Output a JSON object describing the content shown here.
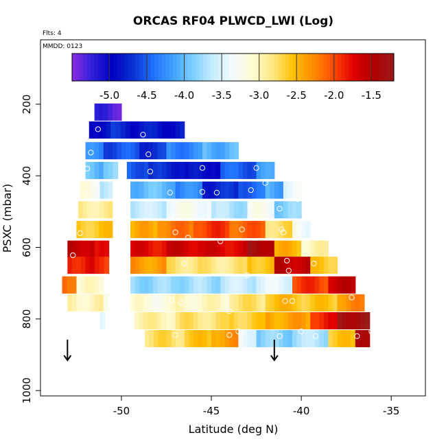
{
  "chart_data": {
    "type": "heatmap",
    "title": "ORCAS RF04 PLWCD_LWI (Log)",
    "note_flts": "Flts: 4",
    "note_mmdd": "MMDD: 0123",
    "xlabel": "Latitude (deg N)",
    "ylabel": "PSXC (mbar)",
    "xlim": [
      -54.5,
      -33.1
    ],
    "ylim": [
      1015,
      20
    ],
    "x_ticks": [
      -50,
      -45,
      -40,
      -35
    ],
    "x_tick_labels": [
      "-50",
      "-45",
      "-40",
      "-35"
    ],
    "y_ticks": [
      200,
      400,
      600,
      800,
      1000
    ],
    "y_tick_labels": [
      "200",
      "400",
      "600",
      "800",
      "1000"
    ],
    "colorbar": {
      "vmin": -5.5,
      "vmax": -1.2,
      "ticks": [
        -5.0,
        -4.5,
        -4.0,
        -3.5,
        -3.0,
        -2.5,
        -2.0,
        -1.5
      ],
      "tick_labels": [
        "-5.0",
        "-4.5",
        "-4.0",
        "-3.5",
        "-3.0",
        "-2.5",
        "-2.0",
        "-1.5"
      ],
      "colors": [
        "#8a2be2",
        "#2f1fd8",
        "#0000c0",
        "#0a2fd0",
        "#1f6fff",
        "#3fa0ff",
        "#7ccfff",
        "#c7ecff",
        "#f4fbff",
        "#fffbd0",
        "#ffe680",
        "#ffc000",
        "#ff8c00",
        "#ff4a00",
        "#e00000",
        "#b00000",
        "#9a1a1a"
      ]
    },
    "rows": [
      {
        "p": 222,
        "segments": [
          [
            -51.5,
            -50.0,
            -5.3
          ]
        ]
      },
      {
        "p": 272,
        "segments": [
          [
            -51.8,
            -50.6,
            -4.9
          ],
          [
            -50.6,
            -49.5,
            -4.75
          ],
          [
            -49.5,
            -46.5,
            -4.85
          ]
        ]
      },
      {
        "p": 330,
        "segments": [
          [
            -52.0,
            -51.0,
            -4.3
          ],
          [
            -51.0,
            -49.0,
            -4.55
          ],
          [
            -49.0,
            -47.5,
            -4.7
          ],
          [
            -47.5,
            -45.5,
            -4.3
          ],
          [
            -45.5,
            -43.5,
            -4.05
          ]
        ]
      },
      {
        "p": 385,
        "segments": [
          [
            -52.0,
            -51.0,
            -4.0
          ],
          [
            -51.0,
            -50.2,
            -3.8
          ],
          [
            -49.7,
            -48.5,
            -4.5
          ],
          [
            -48.5,
            -46.5,
            -4.75
          ],
          [
            -46.5,
            -44.5,
            -4.9
          ],
          [
            -44.5,
            -42.5,
            -4.5
          ],
          [
            -42.5,
            -41.5,
            -4.2
          ]
        ]
      },
      {
        "p": 440,
        "segments": [
          [
            -52.3,
            -51.2,
            -3.2
          ],
          [
            -51.2,
            -50.5,
            -3.6
          ],
          [
            -49.5,
            -47.0,
            -4.0
          ],
          [
            -47.0,
            -45.5,
            -4.3
          ],
          [
            -45.5,
            -43.5,
            -4.75
          ],
          [
            -43.5,
            -42.0,
            -4.45
          ],
          [
            -42.0,
            -41.0,
            -4.1
          ],
          [
            -41.0,
            -40.0,
            -3.4
          ]
        ]
      },
      {
        "p": 495,
        "segments": [
          [
            -52.4,
            -50.5,
            -2.9
          ],
          [
            -49.5,
            -47.5,
            -3.6
          ],
          [
            -47.5,
            -45.0,
            -3.3
          ],
          [
            -45.0,
            -43.0,
            -3.7
          ],
          [
            -43.0,
            -41.5,
            -3.3
          ],
          [
            -41.5,
            -40.0,
            -3.85
          ]
        ]
      },
      {
        "p": 550,
        "segments": [
          [
            -52.5,
            -50.5,
            -2.6
          ],
          [
            -49.5,
            -48.0,
            -2.45
          ],
          [
            -48.0,
            -46.0,
            -2.2
          ],
          [
            -46.0,
            -44.0,
            -1.95
          ],
          [
            -44.0,
            -42.0,
            -2.1
          ],
          [
            -42.0,
            -40.5,
            -2.75
          ],
          [
            -40.5,
            -39.5,
            -3.3
          ]
        ]
      },
      {
        "p": 605,
        "segments": [
          [
            -53.0,
            -51.5,
            -1.55
          ],
          [
            -51.5,
            -50.7,
            -1.85
          ],
          [
            -49.5,
            -47.5,
            -1.75
          ],
          [
            -47.5,
            -45.5,
            -1.65
          ],
          [
            -45.5,
            -43.0,
            -1.7
          ],
          [
            -43.0,
            -41.5,
            -1.4
          ],
          [
            -41.5,
            -40.0,
            -2.5
          ],
          [
            -40.0,
            -38.5,
            -3.0
          ]
        ]
      },
      {
        "p": 650,
        "segments": [
          [
            -53.0,
            -51.5,
            -1.8
          ],
          [
            -51.5,
            -50.7,
            -1.95
          ],
          [
            -49.5,
            -47.5,
            -2.35
          ],
          [
            -47.5,
            -45.5,
            -2.8
          ],
          [
            -45.5,
            -43.0,
            -2.85
          ],
          [
            -43.0,
            -41.5,
            -2.55
          ],
          [
            -41.5,
            -39.5,
            -1.55
          ],
          [
            -39.5,
            -38.0,
            -2.6
          ]
        ]
      },
      {
        "p": 705,
        "segments": [
          [
            -53.3,
            -52.5,
            -2.1
          ],
          [
            -52.5,
            -51.0,
            -3.1
          ],
          [
            -49.5,
            -47.0,
            -3.8
          ],
          [
            -47.0,
            -44.5,
            -3.75
          ],
          [
            -44.5,
            -42.5,
            -3.6
          ],
          [
            -42.5,
            -40.5,
            -3.45
          ],
          [
            -40.5,
            -38.5,
            -1.95
          ],
          [
            -38.5,
            -37.0,
            -1.6
          ]
        ]
      },
      {
        "p": 755,
        "segments": [
          [
            -53.0,
            -51.0,
            -3.0
          ],
          [
            -51.0,
            -50.7,
            -3.3
          ],
          [
            -49.5,
            -47.0,
            -3.15
          ],
          [
            -47.0,
            -44.0,
            -3.05
          ],
          [
            -44.0,
            -42.0,
            -2.8
          ],
          [
            -42.0,
            -40.0,
            -2.55
          ],
          [
            -40.0,
            -38.0,
            -2.6
          ],
          [
            -38.0,
            -36.5,
            -2.3
          ]
        ]
      },
      {
        "p": 805,
        "segments": [
          [
            -51.2,
            -50.9,
            -3.4
          ],
          [
            -49.3,
            -47.0,
            -2.95
          ],
          [
            -47.0,
            -44.0,
            -2.8
          ],
          [
            -44.0,
            -42.0,
            -2.65
          ],
          [
            -42.0,
            -39.5,
            -2.4
          ],
          [
            -39.5,
            -38.0,
            -1.85
          ],
          [
            -38.0,
            -36.2,
            -1.3
          ]
        ]
      },
      {
        "p": 855,
        "segments": [
          [
            -48.7,
            -46.5,
            -2.75
          ],
          [
            -46.5,
            -45.0,
            -2.6
          ],
          [
            -45.0,
            -43.5,
            -2.35
          ],
          [
            -43.5,
            -42.5,
            -3.4
          ],
          [
            -42.5,
            -40.5,
            -3.85
          ],
          [
            -40.5,
            -38.5,
            -3.7
          ],
          [
            -38.5,
            -37.0,
            -2.6
          ],
          [
            -37.0,
            -36.2,
            -1.3
          ]
        ]
      }
    ],
    "points": [
      [
        -51.3,
        270
      ],
      [
        -51.7,
        335
      ],
      [
        -51.9,
        380
      ],
      [
        -52.0,
        450
      ],
      [
        -52.3,
        560
      ],
      [
        -52.7,
        622
      ],
      [
        -53.2,
        670
      ],
      [
        -48.8,
        285
      ],
      [
        -48.5,
        340
      ],
      [
        -48.4,
        388
      ],
      [
        -45.5,
        378
      ],
      [
        -42.5,
        378
      ],
      [
        -42.8,
        440
      ],
      [
        -42.0,
        420
      ],
      [
        -47.3,
        447
      ],
      [
        -45.5,
        445
      ],
      [
        -44.7,
        447
      ],
      [
        -40.2,
        465
      ],
      [
        -41.2,
        492
      ],
      [
        -42.8,
        490
      ],
      [
        -47.2,
        512
      ],
      [
        -45.3,
        517
      ],
      [
        -41.1,
        550
      ],
      [
        -47.0,
        558
      ],
      [
        -44.5,
        583
      ],
      [
        -41.0,
        558
      ],
      [
        -46.3,
        573
      ],
      [
        -43.3,
        550
      ],
      [
        -40.8,
        637
      ],
      [
        -40.0,
        555
      ],
      [
        -46.5,
        645
      ],
      [
        -43.0,
        678
      ],
      [
        -39.3,
        645
      ],
      [
        -40.7,
        665
      ],
      [
        -40.9,
        750
      ],
      [
        -40.5,
        750
      ],
      [
        -46.7,
        755
      ],
      [
        -47.2,
        748
      ],
      [
        -44.0,
        778
      ],
      [
        -37.2,
        740
      ],
      [
        -40.0,
        835
      ],
      [
        -47.0,
        845
      ],
      [
        -44.0,
        845
      ],
      [
        -43.5,
        835
      ],
      [
        -41.2,
        848
      ],
      [
        -39.2,
        848
      ],
      [
        -36.9,
        848
      ],
      [
        -36.1,
        835
      ]
    ],
    "arrows": [
      {
        "lat": -53.0,
        "p": 900
      },
      {
        "lat": -41.5,
        "p": 900
      }
    ]
  }
}
